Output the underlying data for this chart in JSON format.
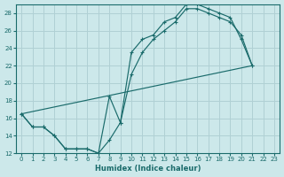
{
  "xlabel": "Humidex (Indice chaleur)",
  "bg_color": "#cce8ea",
  "grid_color": "#b0d0d4",
  "line_color": "#1a6b6b",
  "xlim": [
    -0.5,
    23.5
  ],
  "ylim": [
    12,
    29
  ],
  "yticks": [
    12,
    14,
    16,
    18,
    20,
    22,
    24,
    26,
    28
  ],
  "xticks": [
    0,
    1,
    2,
    3,
    4,
    5,
    6,
    7,
    8,
    9,
    10,
    11,
    12,
    13,
    14,
    15,
    16,
    17,
    18,
    19,
    20,
    21,
    22,
    23
  ],
  "line1_x": [
    0,
    1,
    2,
    3,
    4,
    5,
    6,
    7,
    8,
    9,
    10,
    11,
    12,
    13,
    14,
    15,
    16,
    17,
    18,
    19,
    20,
    21
  ],
  "line1_y": [
    16.5,
    15.0,
    15.0,
    14.0,
    12.5,
    12.5,
    12.5,
    12.0,
    18.5,
    15.5,
    23.5,
    25.0,
    25.5,
    27.0,
    27.5,
    29.0,
    29.0,
    28.5,
    28.0,
    27.5,
    25.0,
    22.0
  ],
  "line2_x": [
    0,
    1,
    2,
    3,
    4,
    5,
    6,
    7,
    8,
    9,
    10,
    11,
    12,
    13,
    14,
    15,
    16,
    17,
    18,
    19,
    20,
    21
  ],
  "line2_y": [
    16.5,
    15.0,
    15.0,
    14.0,
    12.5,
    12.5,
    12.5,
    12.0,
    13.5,
    15.5,
    21.0,
    23.5,
    25.0,
    26.0,
    27.0,
    28.5,
    28.5,
    28.0,
    27.5,
    27.0,
    25.5,
    22.0
  ],
  "line3_x": [
    0,
    21
  ],
  "line3_y": [
    16.5,
    22.0
  ]
}
